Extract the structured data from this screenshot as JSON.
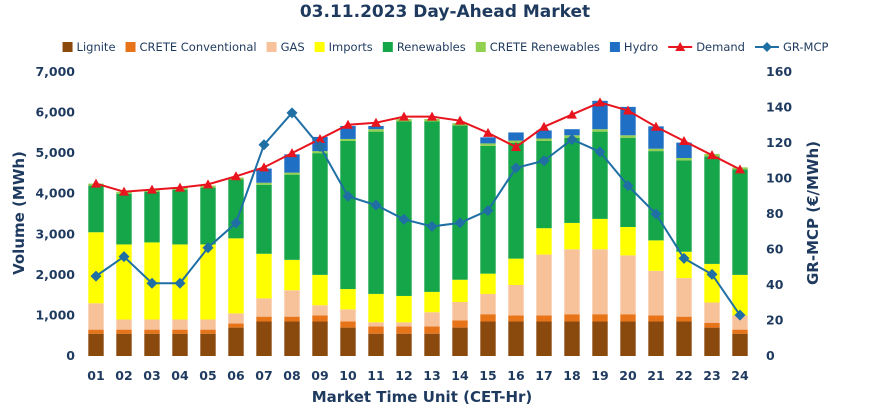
{
  "chart_data": {
    "type": "bar",
    "title": "03.11.2023  Day-Ahead Market",
    "xlabel": "Market Time Unit (CET-Hr)",
    "ylabel": "Volume (MWh)",
    "y2label": "GR-MCP (€/MWh)",
    "ylim": [
      0,
      7000
    ],
    "y2lim": [
      0,
      160
    ],
    "yticks": [
      "0",
      "1,000",
      "2,000",
      "3,000",
      "4,000",
      "5,000",
      "6,000",
      "7,000"
    ],
    "y2ticks": [
      "0",
      "20",
      "40",
      "60",
      "80",
      "100",
      "120",
      "140",
      "160"
    ],
    "legend_position": "top",
    "categories": [
      "01",
      "02",
      "03",
      "04",
      "05",
      "06",
      "07",
      "08",
      "09",
      "10",
      "11",
      "12",
      "13",
      "14",
      "15",
      "16",
      "17",
      "18",
      "19",
      "20",
      "21",
      "22",
      "23",
      "24"
    ],
    "stacked_series": [
      {
        "name": "Lignite",
        "color": "#8b4a0d",
        "values": [
          550,
          550,
          550,
          550,
          550,
          700,
          850,
          850,
          850,
          700,
          550,
          550,
          550,
          700,
          850,
          850,
          850,
          850,
          850,
          850,
          850,
          850,
          700,
          550
        ]
      },
      {
        "name": "CRETE Conventional",
        "color": "#e8741a",
        "values": [
          100,
          100,
          100,
          100,
          100,
          100,
          120,
          120,
          150,
          150,
          180,
          180,
          180,
          180,
          180,
          150,
          150,
          180,
          180,
          180,
          150,
          120,
          120,
          100
        ]
      },
      {
        "name": "GAS",
        "color": "#f7c19a",
        "values": [
          650,
          250,
          250,
          250,
          250,
          250,
          450,
          650,
          250,
          300,
          100,
          100,
          350,
          450,
          500,
          750,
          1500,
          1600,
          1600,
          1450,
          1100,
          950,
          500,
          350
        ]
      },
      {
        "name": "Imports",
        "color": "#ffff00",
        "values": [
          1750,
          1850,
          1900,
          1850,
          1850,
          1850,
          1100,
          750,
          750,
          500,
          700,
          650,
          500,
          550,
          500,
          650,
          650,
          650,
          750,
          700,
          750,
          650,
          950,
          1000
        ]
      },
      {
        "name": "Renewables",
        "color": "#15a64a",
        "values": [
          1150,
          1250,
          1250,
          1350,
          1400,
          1450,
          1700,
          2100,
          3000,
          3650,
          4000,
          4300,
          4200,
          3800,
          3150,
          2850,
          2150,
          2100,
          2150,
          2200,
          2200,
          2250,
          2650,
          2600
        ]
      },
      {
        "name": "CRETE Renewables",
        "color": "#92d050",
        "values": [
          50,
          50,
          50,
          50,
          50,
          50,
          50,
          50,
          50,
          50,
          60,
          60,
          60,
          60,
          60,
          60,
          60,
          60,
          60,
          60,
          60,
          60,
          60,
          50
        ]
      },
      {
        "name": "Hydro",
        "color": "#1f6fc5",
        "values": [
          0,
          0,
          0,
          0,
          0,
          0,
          350,
          450,
          350,
          320,
          80,
          0,
          0,
          0,
          150,
          200,
          200,
          150,
          700,
          700,
          550,
          380,
          0,
          0
        ]
      }
    ],
    "line_series": [
      {
        "name": "Demand",
        "color": "#e8141e",
        "marker": "triangle",
        "axis": "left",
        "values": [
          4250,
          4050,
          4100,
          4150,
          4230,
          4430,
          4650,
          5000,
          5350,
          5700,
          5750,
          5900,
          5900,
          5800,
          5500,
          5150,
          5650,
          5950,
          6250,
          6050,
          5650,
          5300,
          4950,
          4600
        ]
      },
      {
        "name": "GR-MCP",
        "color": "#1f6fa5",
        "marker": "diamond",
        "axis": "right",
        "values": [
          45,
          56,
          41,
          41,
          61,
          75,
          119,
          137,
          118,
          90,
          85,
          77,
          73,
          75,
          82,
          106,
          110,
          122,
          115,
          96,
          80,
          55,
          46,
          23
        ]
      }
    ]
  }
}
